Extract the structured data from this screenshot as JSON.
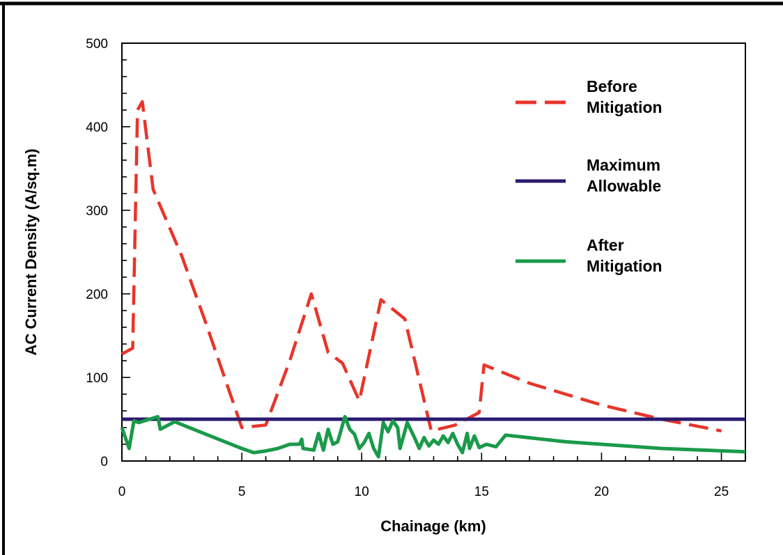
{
  "chart_data": {
    "type": "line",
    "xlabel": "Chainage (km)",
    "ylabel": "AC Current Density (A/sq.m)",
    "xlim": [
      0,
      26
    ],
    "ylim": [
      0,
      500
    ],
    "x_ticks": [
      0,
      5,
      10,
      15,
      20,
      25
    ],
    "y_ticks": [
      0,
      100,
      200,
      300,
      400,
      500
    ],
    "grid": false,
    "legend_position": "top-right",
    "series": [
      {
        "name_lines": [
          "Before",
          "Mitigation"
        ],
        "color": "#e8352a",
        "style": "dashed",
        "points": [
          [
            0,
            128
          ],
          [
            0.45,
            135
          ],
          [
            0.65,
            420
          ],
          [
            0.85,
            430
          ],
          [
            1.3,
            325
          ],
          [
            2.5,
            245
          ],
          [
            3.5,
            165
          ],
          [
            5.0,
            40
          ],
          [
            6.0,
            43
          ],
          [
            7.0,
            120
          ],
          [
            7.9,
            200
          ],
          [
            8.6,
            130
          ],
          [
            9.2,
            117
          ],
          [
            9.9,
            72
          ],
          [
            10.8,
            193
          ],
          [
            11.8,
            170
          ],
          [
            12.9,
            36
          ],
          [
            13.9,
            43
          ],
          [
            14.9,
            58
          ],
          [
            15.1,
            115
          ],
          [
            17.0,
            93
          ],
          [
            20.0,
            67
          ],
          [
            22.5,
            50
          ],
          [
            25.0,
            36
          ]
        ]
      },
      {
        "name_lines": [
          "Maximum",
          "Allowable"
        ],
        "color": "#2b1a6e",
        "style": "solid",
        "points": [
          [
            0,
            50
          ],
          [
            26,
            50
          ]
        ]
      },
      {
        "name_lines": [
          "After",
          "Mitigation"
        ],
        "color": "#1a9a4a",
        "style": "solid",
        "points": [
          [
            0,
            40
          ],
          [
            0.3,
            15
          ],
          [
            0.5,
            48
          ],
          [
            0.7,
            46
          ],
          [
            1.5,
            53
          ],
          [
            1.6,
            38
          ],
          [
            2.2,
            47
          ],
          [
            3.5,
            32
          ],
          [
            5.0,
            15
          ],
          [
            5.5,
            10
          ],
          [
            6.0,
            12
          ],
          [
            6.5,
            15
          ],
          [
            7.0,
            20
          ],
          [
            7.4,
            20
          ],
          [
            7.5,
            26
          ],
          [
            7.55,
            15
          ],
          [
            8.0,
            13
          ],
          [
            8.2,
            33
          ],
          [
            8.4,
            13
          ],
          [
            8.6,
            38
          ],
          [
            8.8,
            20
          ],
          [
            9.0,
            23
          ],
          [
            9.3,
            53
          ],
          [
            9.5,
            38
          ],
          [
            9.7,
            32
          ],
          [
            9.9,
            15
          ],
          [
            10.1,
            22
          ],
          [
            10.3,
            33
          ],
          [
            10.5,
            15
          ],
          [
            10.7,
            5
          ],
          [
            10.9,
            46
          ],
          [
            11.1,
            35
          ],
          [
            11.3,
            48
          ],
          [
            11.5,
            40
          ],
          [
            11.6,
            15
          ],
          [
            11.9,
            46
          ],
          [
            12.2,
            28
          ],
          [
            12.4,
            15
          ],
          [
            12.6,
            28
          ],
          [
            12.8,
            18
          ],
          [
            13.0,
            25
          ],
          [
            13.2,
            20
          ],
          [
            13.4,
            30
          ],
          [
            13.6,
            22
          ],
          [
            13.8,
            33
          ],
          [
            14.0,
            20
          ],
          [
            14.2,
            10
          ],
          [
            14.4,
            33
          ],
          [
            14.5,
            15
          ],
          [
            14.7,
            30
          ],
          [
            14.9,
            16
          ],
          [
            15.2,
            20
          ],
          [
            15.6,
            17
          ],
          [
            16.0,
            31
          ],
          [
            18.5,
            23
          ],
          [
            20.0,
            20
          ],
          [
            22.5,
            15
          ],
          [
            26.0,
            11
          ]
        ]
      }
    ]
  }
}
